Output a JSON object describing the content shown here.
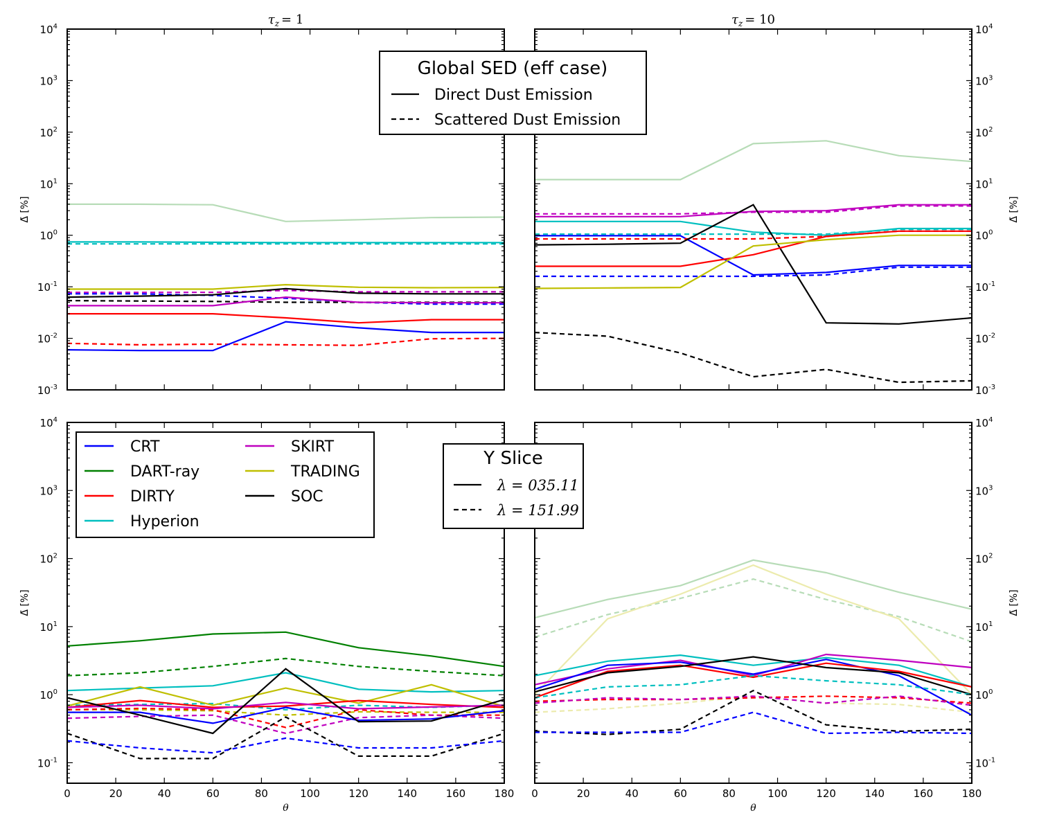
{
  "chart_data": [
    {
      "type": "line",
      "panel": "top-left",
      "title_prefix": "τ",
      "title_sub": "z",
      "title_value": "= 1",
      "ylabel": "Δ̄ [%]",
      "xlabel": "θ",
      "yscale": "log",
      "ylim": [
        0.001,
        10000
      ],
      "xlim": [
        0,
        180
      ],
      "x": [
        0,
        30,
        60,
        90,
        120,
        150,
        180
      ],
      "series": [
        {
          "name": "DART-ray direct (faint)",
          "color": "#b7dcb7",
          "dash": false,
          "values": [
            4.0,
            4.0,
            3.9,
            1.85,
            2.0,
            2.2,
            2.25
          ]
        },
        {
          "name": "Hyperion direct",
          "color": "#00bfbf",
          "dash": false,
          "values": [
            0.74,
            0.74,
            0.73,
            0.72,
            0.72,
            0.72,
            0.72
          ]
        },
        {
          "name": "Hyperion scattered",
          "color": "#00bfbf",
          "dash": true,
          "values": [
            0.68,
            0.68,
            0.68,
            0.68,
            0.68,
            0.68,
            0.68
          ]
        },
        {
          "name": "TRADING direct",
          "color": "#bfbf00",
          "dash": false,
          "values": [
            0.09,
            0.09,
            0.09,
            0.11,
            0.098,
            0.096,
            0.097
          ]
        },
        {
          "name": "SKIRT scattered",
          "color": "#bf00bf",
          "dash": true,
          "values": [
            0.078,
            0.078,
            0.078,
            0.085,
            0.08,
            0.08,
            0.08
          ]
        },
        {
          "name": "CRT scattered",
          "color": "#0000ff",
          "dash": true,
          "values": [
            0.073,
            0.073,
            0.068,
            0.06,
            0.05,
            0.046,
            0.046
          ]
        },
        {
          "name": "SOC direct",
          "color": "#000000",
          "dash": false,
          "values": [
            0.063,
            0.066,
            0.07,
            0.092,
            0.075,
            0.073,
            0.073
          ]
        },
        {
          "name": "SOC scattered",
          "color": "#000000",
          "dash": true,
          "values": [
            0.054,
            0.053,
            0.052,
            0.05,
            0.05,
            0.05,
            0.05
          ]
        },
        {
          "name": "SKIRT direct",
          "color": "#bf00bf",
          "dash": false,
          "values": [
            0.043,
            0.043,
            0.043,
            0.063,
            0.05,
            0.049,
            0.049
          ]
        },
        {
          "name": "DIRTY direct",
          "color": "#ff0000",
          "dash": false,
          "values": [
            0.03,
            0.03,
            0.03,
            0.025,
            0.02,
            0.023,
            0.023
          ]
        },
        {
          "name": "DIRTY scattered",
          "color": "#ff0000",
          "dash": true,
          "values": [
            0.008,
            0.0075,
            0.0077,
            0.0075,
            0.0073,
            0.0098,
            0.01
          ]
        },
        {
          "name": "CRT direct",
          "color": "#0000ff",
          "dash": false,
          "values": [
            0.006,
            0.0058,
            0.0058,
            0.021,
            0.016,
            0.013,
            0.013
          ]
        }
      ]
    },
    {
      "type": "line",
      "panel": "top-right",
      "title_prefix": "τ",
      "title_sub": "z",
      "title_value": "= 10",
      "ylabel": "Δ̄ [%]",
      "xlabel": "θ",
      "yscale": "log",
      "ylim": [
        0.001,
        10000
      ],
      "xlim": [
        0,
        180
      ],
      "x": [
        0,
        30,
        60,
        90,
        120,
        150,
        180
      ],
      "series": [
        {
          "name": "DART-ray direct (faint)",
          "color": "#b7dcb7",
          "dash": false,
          "values": [
            12,
            12,
            12,
            60,
            68,
            35,
            27
          ]
        },
        {
          "name": "SKIRT direct",
          "color": "#bf00bf",
          "dash": false,
          "values": [
            2.3,
            2.3,
            2.3,
            2.9,
            3.0,
            3.9,
            3.9
          ]
        },
        {
          "name": "SKIRT scattered",
          "color": "#bf00bf",
          "dash": true,
          "values": [
            2.6,
            2.6,
            2.6,
            2.8,
            2.8,
            3.7,
            3.7
          ]
        },
        {
          "name": "Hyperion direct",
          "color": "#00bfbf",
          "dash": false,
          "values": [
            1.85,
            1.85,
            1.85,
            1.15,
            1.0,
            1.35,
            1.35
          ]
        },
        {
          "name": "Hyperion scattered",
          "color": "#00bfbf",
          "dash": true,
          "values": [
            1.05,
            1.05,
            1.05,
            1.05,
            1.05,
            1.3,
            1.3
          ]
        },
        {
          "name": "CRT direct",
          "color": "#0000ff",
          "dash": false,
          "values": [
            0.98,
            0.98,
            0.98,
            0.17,
            0.19,
            0.26,
            0.26
          ]
        },
        {
          "name": "DIRTY scattered",
          "color": "#ff0000",
          "dash": true,
          "values": [
            0.85,
            0.85,
            0.85,
            0.85,
            0.95,
            1.2,
            1.2
          ]
        },
        {
          "name": "SOC direct",
          "color": "#000000",
          "dash": false,
          "values": [
            0.65,
            0.67,
            0.7,
            3.9,
            0.02,
            0.019,
            0.025
          ]
        },
        {
          "name": "DIRTY direct",
          "color": "#ff0000",
          "dash": false,
          "values": [
            0.25,
            0.25,
            0.25,
            0.42,
            0.95,
            1.2,
            1.2
          ]
        },
        {
          "name": "CRT scattered",
          "color": "#0000ff",
          "dash": true,
          "values": [
            0.16,
            0.16,
            0.16,
            0.16,
            0.17,
            0.24,
            0.24
          ]
        },
        {
          "name": "TRADING direct",
          "color": "#bfbf00",
          "dash": false,
          "values": [
            0.093,
            0.095,
            0.097,
            0.62,
            0.82,
            1.0,
            1.0
          ]
        },
        {
          "name": "SOC scattered",
          "color": "#000000",
          "dash": true,
          "values": [
            0.013,
            0.011,
            0.0052,
            0.0018,
            0.0025,
            0.0014,
            0.0015
          ]
        }
      ]
    },
    {
      "type": "line",
      "panel": "bottom-left",
      "ylabel": "Δ̄ [%]",
      "xlabel": "θ",
      "yscale": "log",
      "ylim": [
        0.05,
        10000
      ],
      "xlim": [
        0,
        180
      ],
      "xticks": [
        0,
        20,
        40,
        60,
        80,
        100,
        120,
        140,
        160,
        180
      ],
      "x": [
        0,
        30,
        60,
        90,
        120,
        150,
        180
      ],
      "series": [
        {
          "name": "DART-ray direct",
          "color": "#008000",
          "dash": false,
          "values": [
            5.2,
            6.2,
            7.8,
            8.3,
            4.9,
            3.7,
            2.6
          ]
        },
        {
          "name": "DART-ray scattered",
          "color": "#008000",
          "dash": true,
          "values": [
            1.9,
            2.1,
            2.6,
            3.4,
            2.6,
            2.2,
            1.9
          ]
        },
        {
          "name": "Hyperion direct",
          "color": "#00bfbf",
          "dash": false,
          "values": [
            1.15,
            1.25,
            1.35,
            2.1,
            1.2,
            1.1,
            1.15
          ]
        },
        {
          "name": "Hyperion scattered",
          "color": "#00bfbf",
          "dash": true,
          "values": [
            0.7,
            0.72,
            0.74,
            0.6,
            0.7,
            0.65,
            0.7
          ]
        },
        {
          "name": "TRADING direct",
          "color": "#bfbf00",
          "dash": false,
          "values": [
            0.68,
            1.3,
            0.7,
            1.25,
            0.75,
            1.4,
            0.67
          ]
        },
        {
          "name": "TRADING scattered",
          "color": "#bfbf00",
          "dash": true,
          "values": [
            0.6,
            0.6,
            0.58,
            0.5,
            0.56,
            0.55,
            0.55
          ]
        },
        {
          "name": "DIRTY direct",
          "color": "#ff0000",
          "dash": false,
          "values": [
            0.65,
            0.82,
            0.65,
            0.68,
            0.82,
            0.72,
            0.65
          ]
        },
        {
          "name": "DIRTY scattered",
          "color": "#ff0000",
          "dash": true,
          "values": [
            0.6,
            0.63,
            0.6,
            0.33,
            0.6,
            0.5,
            0.5
          ]
        },
        {
          "name": "SKIRT direct",
          "color": "#bf00bf",
          "dash": false,
          "values": [
            0.65,
            0.7,
            0.62,
            0.77,
            0.62,
            0.66,
            0.7
          ]
        },
        {
          "name": "SKIRT scattered",
          "color": "#bf00bf",
          "dash": true,
          "values": [
            0.45,
            0.48,
            0.5,
            0.27,
            0.46,
            0.5,
            0.45
          ]
        },
        {
          "name": "CRT direct",
          "color": "#0000ff",
          "dash": false,
          "values": [
            0.55,
            0.55,
            0.38,
            0.65,
            0.42,
            0.44,
            0.58
          ]
        },
        {
          "name": "SOC direct",
          "color": "#000000",
          "dash": false,
          "values": [
            0.9,
            0.5,
            0.27,
            2.4,
            0.4,
            0.41,
            0.85
          ]
        },
        {
          "name": "SOC scattered",
          "color": "#000000",
          "dash": true,
          "values": [
            0.27,
            0.115,
            0.115,
            0.47,
            0.125,
            0.125,
            0.27
          ]
        },
        {
          "name": "CRT scattered",
          "color": "#0000ff",
          "dash": true,
          "values": [
            0.21,
            0.165,
            0.14,
            0.23,
            0.165,
            0.165,
            0.21
          ]
        }
      ]
    },
    {
      "type": "line",
      "panel": "bottom-right",
      "ylabel": "Δ̄ [%]",
      "xlabel": "θ",
      "yscale": "log",
      "ylim": [
        0.05,
        10000
      ],
      "xlim": [
        0,
        180
      ],
      "xticks": [
        0,
        20,
        40,
        60,
        80,
        100,
        120,
        140,
        160,
        180
      ],
      "x": [
        0,
        30,
        60,
        90,
        120,
        150,
        180
      ],
      "series": [
        {
          "name": "DART-ray direct (faint)",
          "color": "#b7dcb7",
          "dash": false,
          "values": [
            13.5,
            25,
            40,
            95,
            62,
            32,
            18
          ]
        },
        {
          "name": "DART-ray scattered (faint)",
          "color": "#b7dcb7",
          "dash": true,
          "values": [
            7,
            15,
            26,
            50,
            25,
            14,
            6
          ]
        },
        {
          "name": "TRADING direct (faint)",
          "color": "#ecebad",
          "dash": false,
          "values": [
            1.0,
            13,
            30,
            80,
            30,
            13,
            1.0
          ]
        },
        {
          "name": "TRADING scattered (faint)",
          "color": "#ecebad",
          "dash": true,
          "values": [
            0.55,
            0.62,
            0.75,
            0.95,
            0.75,
            0.72,
            0.55
          ]
        },
        {
          "name": "Hyperion direct",
          "color": "#00bfbf",
          "dash": false,
          "values": [
            1.9,
            3.1,
            3.8,
            2.7,
            3.5,
            2.7,
            1.3
          ]
        },
        {
          "name": "SKIRT direct",
          "color": "#bf00bf",
          "dash": false,
          "values": [
            1.4,
            2.4,
            3.2,
            1.9,
            3.9,
            3.2,
            2.5
          ]
        },
        {
          "name": "CRT direct",
          "color": "#0000ff",
          "dash": false,
          "values": [
            1.2,
            2.7,
            3.0,
            2.0,
            3.3,
            1.9,
            0.5
          ]
        },
        {
          "name": "DIRTY direct",
          "color": "#ff0000",
          "dash": false,
          "values": [
            0.9,
            2.2,
            2.7,
            1.8,
            2.9,
            2.2,
            1.3
          ]
        },
        {
          "name": "SOC direct",
          "color": "#000000",
          "dash": false,
          "values": [
            1.1,
            2.1,
            2.6,
            3.6,
            2.5,
            2.1,
            1.0
          ]
        },
        {
          "name": "Hyperion scattered",
          "color": "#00bfbf",
          "dash": true,
          "values": [
            0.9,
            1.3,
            1.4,
            1.9,
            1.6,
            1.4,
            1.0
          ]
        },
        {
          "name": "DIRTY scattered",
          "color": "#ff0000",
          "dash": true,
          "values": [
            0.8,
            0.85,
            0.85,
            0.9,
            0.95,
            0.9,
            0.75
          ]
        },
        {
          "name": "SKIRT scattered",
          "color": "#bf00bf",
          "dash": true,
          "values": [
            0.75,
            0.9,
            0.85,
            0.95,
            0.75,
            0.95,
            0.7
          ]
        },
        {
          "name": "SOC scattered",
          "color": "#000000",
          "dash": true,
          "values": [
            0.29,
            0.26,
            0.31,
            1.15,
            0.36,
            0.29,
            0.31
          ]
        },
        {
          "name": "CRT scattered",
          "color": "#0000ff",
          "dash": true,
          "values": [
            0.28,
            0.28,
            0.28,
            0.55,
            0.27,
            0.28,
            0.27
          ]
        }
      ]
    }
  ],
  "axes": {
    "top_yticks": [
      {
        "base": "10",
        "exp": "-3"
      },
      {
        "base": "10",
        "exp": "-2"
      },
      {
        "base": "10",
        "exp": "-1"
      },
      {
        "base": "10",
        "exp": "0"
      },
      {
        "base": "10",
        "exp": "1"
      },
      {
        "base": "10",
        "exp": "2"
      },
      {
        "base": "10",
        "exp": "3"
      },
      {
        "base": "10",
        "exp": "4"
      }
    ],
    "bottom_yticks": [
      {
        "base": "10",
        "exp": "-1"
      },
      {
        "base": "10",
        "exp": "0"
      },
      {
        "base": "10",
        "exp": "1"
      },
      {
        "base": "10",
        "exp": "2"
      },
      {
        "base": "10",
        "exp": "3"
      },
      {
        "base": "10",
        "exp": "4"
      }
    ],
    "xticks": [
      "0",
      "20",
      "40",
      "60",
      "80",
      "100",
      "120",
      "140",
      "160",
      "180"
    ]
  },
  "legend_global": {
    "title": "Global SED (eff case)",
    "entries": [
      {
        "label": "Direct Dust Emission",
        "dash": false
      },
      {
        "label": "Scattered Dust Emission",
        "dash": true
      }
    ]
  },
  "legend_codes": {
    "entries": [
      {
        "label": "CRT",
        "color": "#0000ff"
      },
      {
        "label": "DART-ray",
        "color": "#008000"
      },
      {
        "label": "DIRTY",
        "color": "#ff0000"
      },
      {
        "label": "Hyperion",
        "color": "#00bfbf"
      },
      {
        "label": "SKIRT",
        "color": "#bf00bf"
      },
      {
        "label": "TRADING",
        "color": "#bfbf00"
      },
      {
        "label": "SOC",
        "color": "#000000"
      }
    ]
  },
  "legend_slice": {
    "title": "Y Slice",
    "entries": [
      {
        "label": "λ = 035.11",
        "dash": false
      },
      {
        "label": "λ = 151.99",
        "dash": true
      }
    ]
  }
}
